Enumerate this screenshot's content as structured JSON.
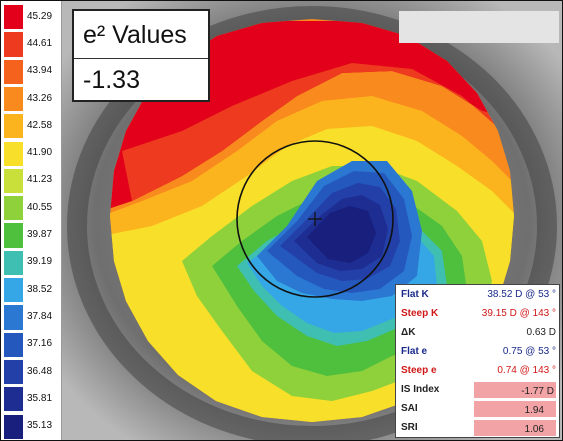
{
  "scale": {
    "values": [
      "45.29",
      "44.61",
      "43.94",
      "43.26",
      "42.58",
      "41.90",
      "41.23",
      "40.55",
      "39.87",
      "39.19",
      "38.52",
      "37.84",
      "37.16",
      "36.48",
      "35.81",
      "35.13"
    ],
    "colors": [
      "#e2001a",
      "#ee3a1e",
      "#f4621e",
      "#f98a1e",
      "#fcb41e",
      "#f8df2a",
      "#c9e03a",
      "#8fd13a",
      "#4fbf3e",
      "#3fbfb2",
      "#35a7e6",
      "#2a78d2",
      "#2458bd",
      "#2240a8",
      "#1d2d92",
      "#181f7c"
    ]
  },
  "e2_box": {
    "title": "e² Values",
    "value": "-1.33"
  },
  "indices": {
    "flat_k": {
      "label": "Flat K",
      "value": "38.52 D @ 53 °"
    },
    "steep_k": {
      "label": "Steep K",
      "value": "39.15 D @ 143 °"
    },
    "delta_k": {
      "label": "ΔK",
      "value": "0.63 D"
    },
    "flat_e": {
      "label": "Flat e",
      "value": "0.75 @ 53 °"
    },
    "steep_e": {
      "label": "Steep e",
      "value": "0.74 @ 143 °"
    },
    "is_index": {
      "label": "IS Index",
      "value": "-1.77",
      "unit": "D"
    },
    "sai": {
      "label": "SAI",
      "value": "1.94"
    },
    "sri": {
      "label": "SRI",
      "value": "1.06"
    }
  }
}
